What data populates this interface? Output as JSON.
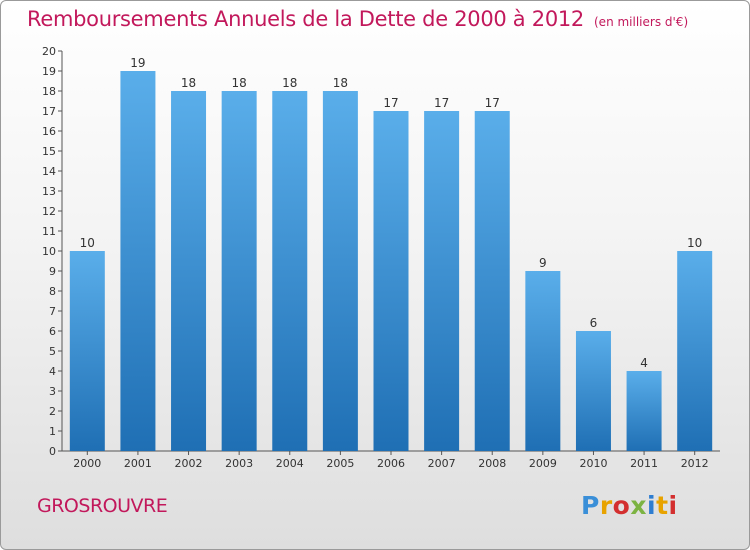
{
  "title": "Remboursements Annuels de la Dette de 2000 à 2012",
  "subtitle": "(en milliers d'€)",
  "place": "GROSROUVRE",
  "logo": {
    "letters": [
      "P",
      "r",
      "o",
      "x",
      "i",
      "t",
      "i"
    ],
    "colors": [
      "#3a8fd8",
      "#e8a300",
      "#d32f2f",
      "#7cb342",
      "#2e7dd1",
      "#e8a300",
      "#d32f2f"
    ]
  },
  "colors": {
    "bar_top": "#5aaeea",
    "bar_bottom": "#1f6fb4",
    "title": "#c2185b"
  },
  "chart_data": {
    "type": "bar",
    "title": "Remboursements Annuels de la Dette de 2000 à 2012",
    "categories": [
      "2000",
      "2001",
      "2002",
      "2003",
      "2004",
      "2005",
      "2006",
      "2007",
      "2008",
      "2009",
      "2010",
      "2011",
      "2012"
    ],
    "values": [
      10,
      19,
      18,
      18,
      18,
      18,
      17,
      17,
      17,
      9,
      6,
      4,
      10
    ],
    "ylim": [
      0,
      20
    ],
    "yticks": [
      0,
      1,
      2,
      3,
      4,
      5,
      6,
      7,
      8,
      9,
      10,
      11,
      12,
      13,
      14,
      15,
      16,
      17,
      18,
      19,
      20
    ],
    "grid": false,
    "xlabel": "",
    "ylabel": ""
  }
}
